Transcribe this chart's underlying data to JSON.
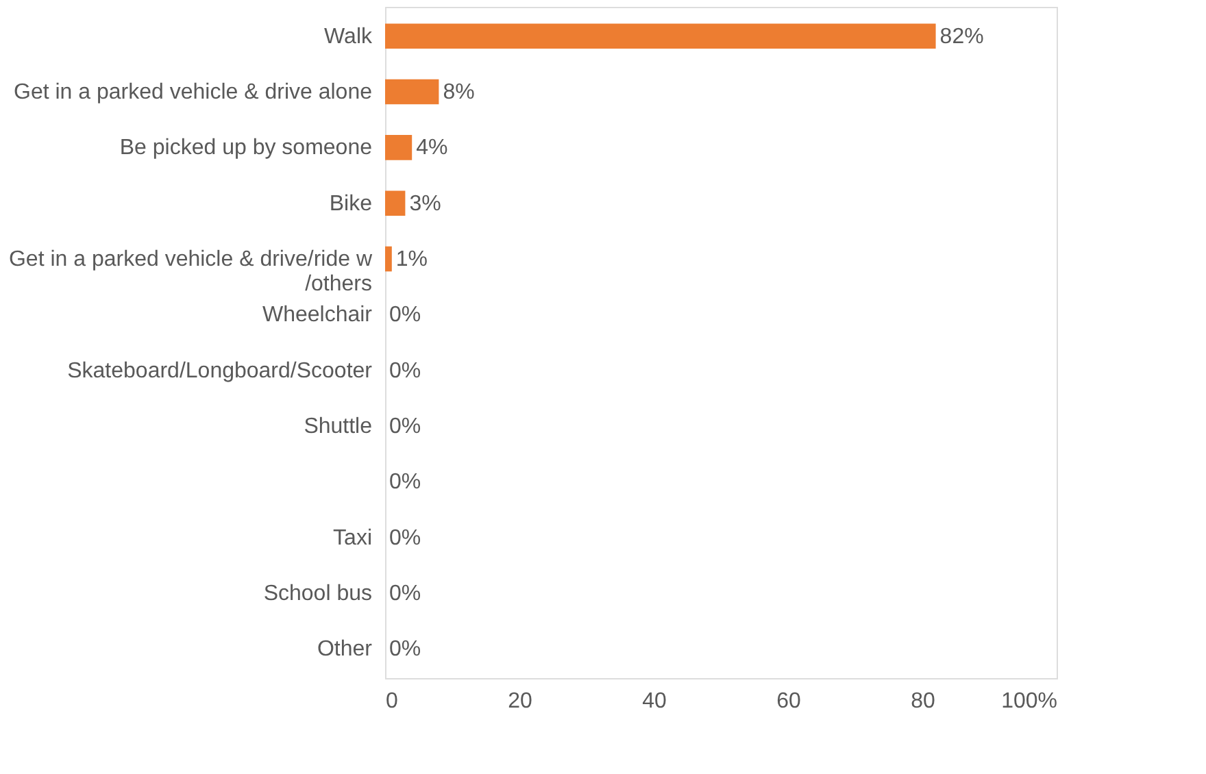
{
  "chart_data": {
    "type": "bar",
    "orientation": "horizontal",
    "categories": [
      "Walk",
      "Get in a parked vehicle & drive alone",
      "Be picked up by someone",
      "Bike",
      "Get in a parked vehicle & drive/ride w /others",
      "Wheelchair",
      "Skateboard/Longboard/Scooter",
      "Shuttle",
      null,
      "Taxi",
      "School bus",
      "Other"
    ],
    "values": [
      82,
      8,
      4,
      3,
      1,
      0,
      0,
      0,
      0,
      0,
      0,
      0
    ],
    "value_labels": [
      "82%",
      "8%",
      "4%",
      "3%",
      "1%",
      "0%",
      "0%",
      "0%",
      "0%",
      "0%",
      "0%",
      "0%"
    ],
    "color": "#ed7d31",
    "xlim": [
      0,
      100
    ],
    "xticks": [
      0,
      20,
      40,
      60,
      80,
      {
        "value": 100,
        "label": "100%"
      }
    ],
    "grid": false
  }
}
